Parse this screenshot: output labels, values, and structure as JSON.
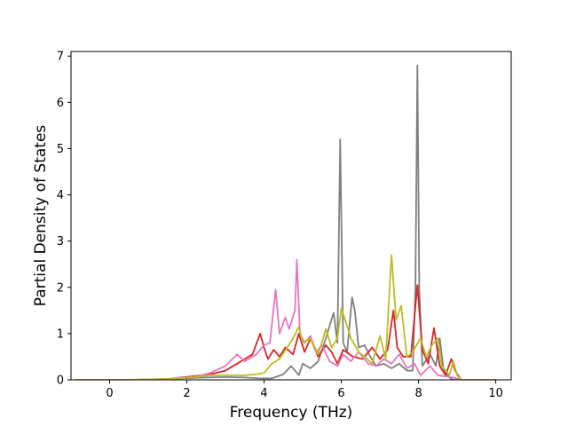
{
  "chart_data": {
    "type": "line",
    "title": "",
    "xlabel": "Frequency (THz)",
    "ylabel": "Partial Density of States",
    "xlim": [
      -1.0,
      10.4
    ],
    "ylim": [
      0,
      7.1
    ],
    "xticks": [
      0,
      2,
      4,
      6,
      8,
      10
    ],
    "yticks": [
      0,
      1,
      2,
      3,
      4,
      5,
      6,
      7
    ],
    "xtick_labels": [
      "0",
      "2",
      "4",
      "6",
      "8",
      "10"
    ],
    "ytick_labels": [
      "0",
      "1",
      "2",
      "3",
      "4",
      "5",
      "6",
      "7"
    ],
    "grid": false,
    "legend": "none",
    "series": [
      {
        "color": "#7f7f7f",
        "points": [
          [
            -0.9,
            0
          ],
          [
            0.5,
            0
          ],
          [
            1.5,
            0.02
          ],
          [
            2.5,
            0.05
          ],
          [
            3.0,
            0.06
          ],
          [
            3.5,
            0.05
          ],
          [
            3.9,
            0.03
          ],
          [
            4.2,
            0.03
          ],
          [
            4.5,
            0.12
          ],
          [
            4.7,
            0.3
          ],
          [
            4.8,
            0.2
          ],
          [
            4.9,
            0.1
          ],
          [
            5.0,
            0.35
          ],
          [
            5.2,
            0.25
          ],
          [
            5.4,
            0.4
          ],
          [
            5.6,
            0.9
          ],
          [
            5.8,
            1.45
          ],
          [
            5.9,
            0.8
          ],
          [
            5.97,
            5.2
          ],
          [
            6.05,
            0.8
          ],
          [
            6.15,
            0.6
          ],
          [
            6.28,
            1.78
          ],
          [
            6.35,
            1.5
          ],
          [
            6.45,
            0.7
          ],
          [
            6.6,
            0.75
          ],
          [
            6.75,
            0.5
          ],
          [
            6.9,
            0.3
          ],
          [
            7.1,
            0.35
          ],
          [
            7.3,
            0.25
          ],
          [
            7.5,
            0.35
          ],
          [
            7.7,
            0.2
          ],
          [
            7.85,
            0.2
          ],
          [
            7.92,
            2.0
          ],
          [
            7.97,
            6.8
          ],
          [
            8.02,
            2.0
          ],
          [
            8.1,
            0.3
          ],
          [
            8.3,
            0.55
          ],
          [
            8.45,
            0.3
          ],
          [
            8.55,
            0.9
          ],
          [
            8.65,
            0.2
          ],
          [
            8.8,
            0.05
          ],
          [
            8.9,
            0
          ],
          [
            10.0,
            0
          ]
        ]
      },
      {
        "color": "#d62728",
        "points": [
          [
            -0.9,
            0
          ],
          [
            0.5,
            0
          ],
          [
            1.5,
            0.02
          ],
          [
            2.2,
            0.08
          ],
          [
            2.6,
            0.12
          ],
          [
            3.0,
            0.2
          ],
          [
            3.3,
            0.35
          ],
          [
            3.5,
            0.45
          ],
          [
            3.7,
            0.55
          ],
          [
            3.9,
            1.0
          ],
          [
            4.0,
            0.7
          ],
          [
            4.1,
            0.45
          ],
          [
            4.25,
            0.65
          ],
          [
            4.4,
            0.5
          ],
          [
            4.55,
            0.7
          ],
          [
            4.75,
            0.55
          ],
          [
            4.9,
            1.0
          ],
          [
            5.05,
            0.6
          ],
          [
            5.2,
            0.9
          ],
          [
            5.4,
            0.5
          ],
          [
            5.6,
            0.75
          ],
          [
            5.75,
            0.6
          ],
          [
            5.9,
            0.35
          ],
          [
            6.05,
            0.65
          ],
          [
            6.3,
            0.5
          ],
          [
            6.55,
            0.45
          ],
          [
            6.8,
            0.7
          ],
          [
            7.0,
            0.45
          ],
          [
            7.2,
            0.65
          ],
          [
            7.35,
            1.5
          ],
          [
            7.45,
            0.7
          ],
          [
            7.6,
            0.5
          ],
          [
            7.8,
            0.5
          ],
          [
            7.97,
            2.05
          ],
          [
            8.1,
            0.65
          ],
          [
            8.25,
            0.35
          ],
          [
            8.4,
            1.12
          ],
          [
            8.55,
            0.3
          ],
          [
            8.7,
            0.1
          ],
          [
            8.85,
            0.45
          ],
          [
            8.95,
            0.2
          ],
          [
            9.1,
            0
          ],
          [
            10.0,
            0
          ]
        ]
      },
      {
        "color": "#e377c2",
        "points": [
          [
            -0.9,
            0
          ],
          [
            0.5,
            0
          ],
          [
            1.5,
            0.02
          ],
          [
            2.2,
            0.06
          ],
          [
            2.6,
            0.15
          ],
          [
            3.0,
            0.3
          ],
          [
            3.3,
            0.55
          ],
          [
            3.5,
            0.4
          ],
          [
            3.8,
            0.55
          ],
          [
            4.0,
            0.75
          ],
          [
            4.15,
            0.8
          ],
          [
            4.3,
            1.95
          ],
          [
            4.4,
            1.0
          ],
          [
            4.55,
            1.35
          ],
          [
            4.65,
            1.1
          ],
          [
            4.8,
            1.5
          ],
          [
            4.85,
            2.6
          ],
          [
            4.93,
            1.0
          ],
          [
            5.05,
            0.8
          ],
          [
            5.2,
            0.95
          ],
          [
            5.35,
            0.6
          ],
          [
            5.5,
            0.75
          ],
          [
            5.7,
            0.4
          ],
          [
            5.9,
            0.3
          ],
          [
            6.05,
            0.55
          ],
          [
            6.25,
            0.4
          ],
          [
            6.45,
            0.6
          ],
          [
            6.7,
            0.35
          ],
          [
            6.9,
            0.3
          ],
          [
            7.1,
            0.45
          ],
          [
            7.3,
            0.35
          ],
          [
            7.5,
            0.55
          ],
          [
            7.7,
            0.25
          ],
          [
            7.9,
            0.35
          ],
          [
            8.05,
            0.1
          ],
          [
            8.3,
            0.3
          ],
          [
            8.5,
            0.1
          ],
          [
            8.9,
            0.05
          ],
          [
            9.1,
            0
          ],
          [
            10.0,
            0
          ]
        ]
      },
      {
        "color": "#bcbd22",
        "points": [
          [
            -0.9,
            0
          ],
          [
            0.5,
            0
          ],
          [
            1.5,
            0.02
          ],
          [
            2.2,
            0.06
          ],
          [
            2.6,
            0.1
          ],
          [
            3.0,
            0.1
          ],
          [
            3.5,
            0.1
          ],
          [
            3.8,
            0.12
          ],
          [
            4.0,
            0.15
          ],
          [
            4.2,
            0.35
          ],
          [
            4.4,
            0.45
          ],
          [
            4.6,
            0.7
          ],
          [
            4.75,
            0.9
          ],
          [
            4.9,
            1.15
          ],
          [
            5.0,
            0.8
          ],
          [
            5.2,
            0.9
          ],
          [
            5.4,
            0.55
          ],
          [
            5.6,
            1.1
          ],
          [
            5.75,
            0.7
          ],
          [
            5.9,
            0.9
          ],
          [
            6.0,
            1.55
          ],
          [
            6.1,
            1.3
          ],
          [
            6.25,
            0.9
          ],
          [
            6.45,
            0.6
          ],
          [
            6.6,
            0.5
          ],
          [
            6.8,
            0.35
          ],
          [
            7.0,
            0.95
          ],
          [
            7.15,
            0.45
          ],
          [
            7.3,
            2.7
          ],
          [
            7.42,
            1.3
          ],
          [
            7.55,
            1.6
          ],
          [
            7.7,
            0.5
          ],
          [
            7.85,
            0.6
          ],
          [
            8.05,
            0.9
          ],
          [
            8.2,
            0.5
          ],
          [
            8.35,
            0.75
          ],
          [
            8.5,
            0.9
          ],
          [
            8.6,
            0.3
          ],
          [
            8.8,
            0.1
          ],
          [
            8.9,
            0.4
          ],
          [
            9.0,
            0.1
          ],
          [
            9.1,
            0
          ],
          [
            10.0,
            0
          ]
        ]
      }
    ]
  }
}
